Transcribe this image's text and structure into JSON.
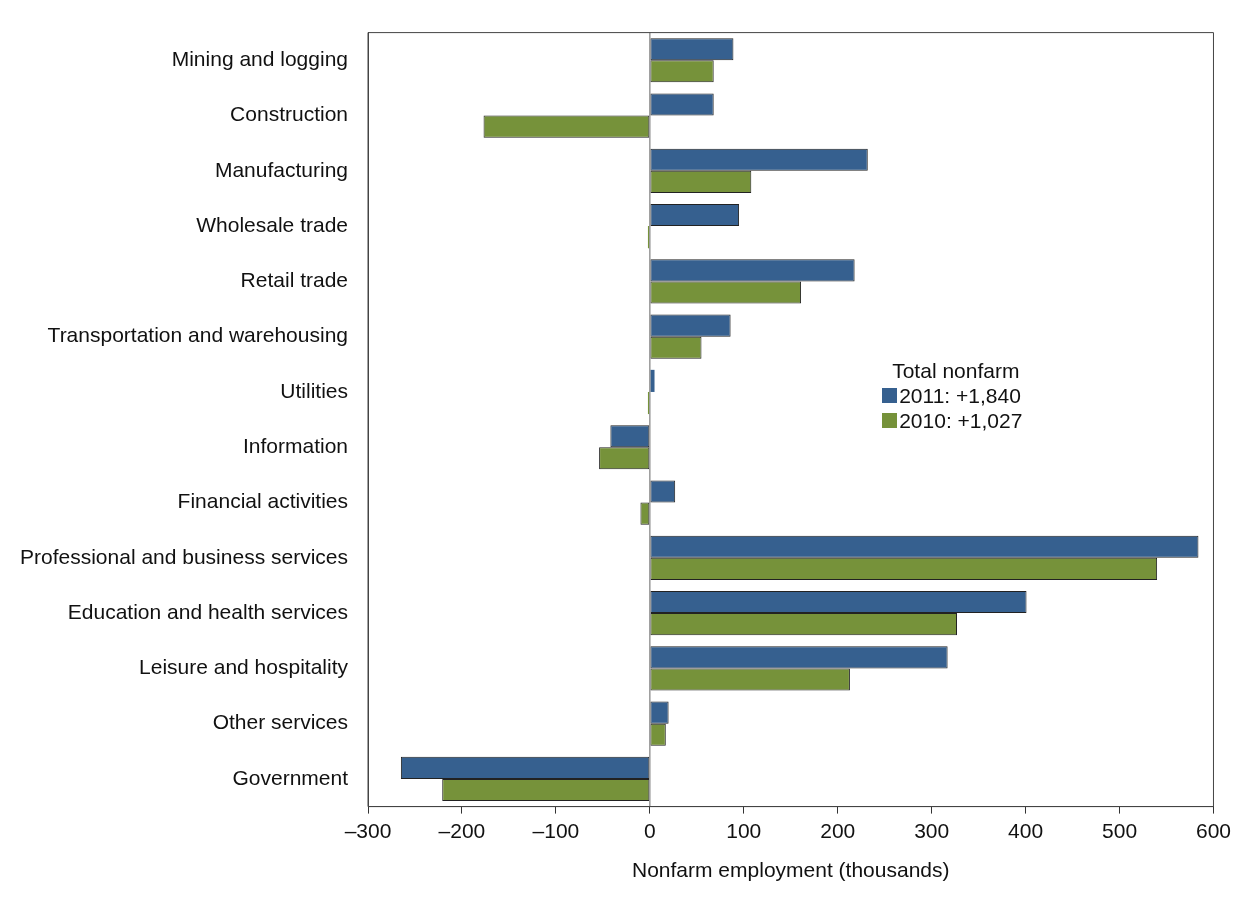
{
  "chart_data": {
    "type": "bar",
    "orientation": "horizontal",
    "xlabel": "Nonfarm employment (thousands)",
    "categories": [
      "Mining and logging",
      "Construction",
      "Manufacturing",
      "Wholesale trade",
      "Retail trade",
      "Transportation and warehousing",
      "Utilities",
      "Information",
      "Financial activities",
      "Professional and business services",
      "Education and health services",
      "Leisure and hospitality",
      "Other services",
      "Government"
    ],
    "series": [
      {
        "name": "2011: +1,840",
        "color": "#36608f",
        "values": [
          89,
          68,
          232,
          95,
          218,
          86,
          5,
          -42,
          27,
          584,
          401,
          317,
          20,
          -265
        ]
      },
      {
        "name": "2010: +1,027",
        "color": "#76923a",
        "values": [
          68,
          -177,
          108,
          -2,
          161,
          55,
          -2,
          -54,
          -10,
          540,
          327,
          213,
          17,
          -221
        ]
      }
    ],
    "xlim": [
      -300,
      600
    ],
    "xticks": [
      {
        "value": -300,
        "label": "–300"
      },
      {
        "value": -200,
        "label": "–200"
      },
      {
        "value": -100,
        "label": "–100"
      },
      0,
      100,
      200,
      300,
      400,
      500,
      600
    ],
    "legend": "right",
    "legend_title": "Total nonfarm"
  }
}
